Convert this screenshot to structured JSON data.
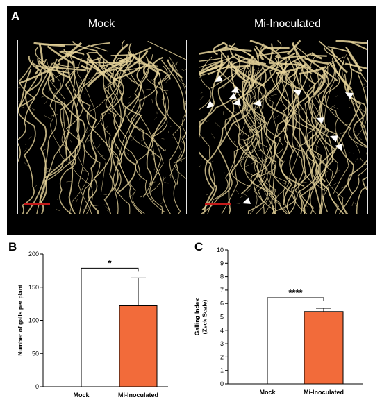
{
  "figure": {
    "panel_a": {
      "letter": "A",
      "left_title": "Mock",
      "right_title": "Mi-Inoculated"
    },
    "panel_b": {
      "letter": "B"
    },
    "panel_c": {
      "letter": "C"
    }
  },
  "colors": {
    "background_a": "#000000",
    "root": "#e6d39a",
    "arrowhead": "#ffffff",
    "scale_bar": "#c41a1a",
    "bar_fill": "#f26b3a"
  },
  "chart_data": [
    {
      "id": "B",
      "type": "bar",
      "categories": [
        "Mock",
        "Mi-Inoculated"
      ],
      "values": [
        0,
        122
      ],
      "error": [
        0,
        42
      ],
      "ylabel": "Number of galls per plant",
      "xlabel": "",
      "ylim": [
        0,
        200
      ],
      "yticks": [
        0,
        50,
        100,
        150,
        200
      ],
      "significance": "*",
      "grid": false
    },
    {
      "id": "C",
      "type": "bar",
      "categories": [
        "Mock",
        "Mi-Inoculated"
      ],
      "values": [
        0,
        5.4
      ],
      "error": [
        0,
        0.25
      ],
      "ylabel_lines": [
        "Galling Index",
        "(Zeck Scale)"
      ],
      "xlabel": "",
      "ylim": [
        0,
        10
      ],
      "yticks": [
        0,
        1,
        2,
        3,
        4,
        5,
        6,
        7,
        8,
        9,
        10
      ],
      "significance": "****",
      "grid": false
    }
  ]
}
